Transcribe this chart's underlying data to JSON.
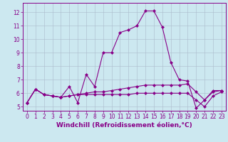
{
  "title": "",
  "xlabel": "Windchill (Refroidissement éolien,°C)",
  "ylabel": "",
  "bg_color": "#cce8f0",
  "line_color": "#880088",
  "grid_color": "#aabbcc",
  "xlim": [
    -0.5,
    23.5
  ],
  "ylim": [
    4.7,
    12.7
  ],
  "yticks": [
    5,
    6,
    7,
    8,
    9,
    10,
    11,
    12
  ],
  "xticks": [
    0,
    1,
    2,
    3,
    4,
    5,
    6,
    7,
    8,
    9,
    10,
    11,
    12,
    13,
    14,
    15,
    16,
    17,
    18,
    19,
    20,
    21,
    22,
    23
  ],
  "series": [
    [
      5.3,
      6.3,
      5.9,
      5.8,
      5.7,
      6.5,
      5.3,
      7.4,
      6.5,
      9.0,
      9.0,
      10.5,
      10.7,
      11.0,
      12.1,
      12.1,
      10.9,
      8.3,
      7.0,
      6.9,
      4.9,
      5.5,
      6.2,
      6.2
    ],
    [
      5.3,
      6.3,
      5.9,
      5.8,
      5.7,
      5.8,
      5.9,
      6.0,
      6.1,
      6.1,
      6.2,
      6.3,
      6.4,
      6.5,
      6.6,
      6.6,
      6.6,
      6.6,
      6.6,
      6.7,
      6.1,
      5.5,
      6.1,
      6.2
    ],
    [
      5.3,
      6.3,
      5.9,
      5.8,
      5.7,
      5.8,
      5.9,
      5.9,
      5.9,
      5.9,
      5.9,
      5.9,
      5.9,
      6.0,
      6.0,
      6.0,
      6.0,
      6.0,
      6.0,
      6.0,
      5.5,
      5.0,
      5.8,
      6.1
    ]
  ],
  "marker": "D",
  "markersize": 2.0,
  "linewidth": 0.8,
  "xlabel_fontsize": 6.5,
  "tick_fontsize": 5.5
}
